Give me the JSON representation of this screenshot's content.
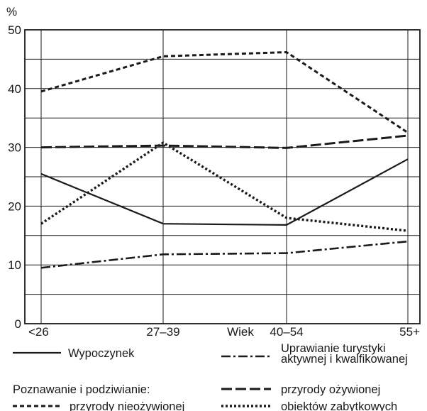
{
  "chart_data": {
    "type": "line",
    "ylabel": "%",
    "xlabel": "Wiek",
    "ylim": [
      0,
      50
    ],
    "yticks": [
      0,
      10,
      20,
      30,
      40,
      50
    ],
    "y_gridlines": [
      0,
      5,
      10,
      15,
      20,
      25,
      30,
      35,
      40,
      45,
      50
    ],
    "grid": true,
    "categories": [
      "<26",
      "27–39",
      "40–54",
      "55+"
    ],
    "legend_placement": "bottom",
    "legend_group_label": "Poznawanie i podziwianie:",
    "series": [
      {
        "name": "Wypoczynek",
        "style": "solid",
        "values": [
          25.5,
          17.0,
          16.8,
          28.0
        ]
      },
      {
        "name": "Uprawianie turystyki aktywnej i kwalfikowanej",
        "name_lines": [
          "Uprawianie turystyki",
          "aktywnej i kwalfikowanej"
        ],
        "style": "dashdot",
        "values": [
          9.5,
          11.8,
          12.0,
          14.0
        ]
      },
      {
        "name": "przyrody ożywionej",
        "style": "longdash",
        "values": [
          30.0,
          30.3,
          29.9,
          32.0
        ]
      },
      {
        "name": "przyrody nieożywionej",
        "style": "dashed",
        "values": [
          39.5,
          45.5,
          46.2,
          32.5
        ]
      },
      {
        "name": "obiektów zabytkowych",
        "style": "dotted",
        "values": [
          17.0,
          30.8,
          18.0,
          15.8
        ]
      }
    ]
  },
  "colors": {
    "line": "#1a1a1a",
    "grid": "#1a1a1a",
    "background": "#ffffff"
  }
}
